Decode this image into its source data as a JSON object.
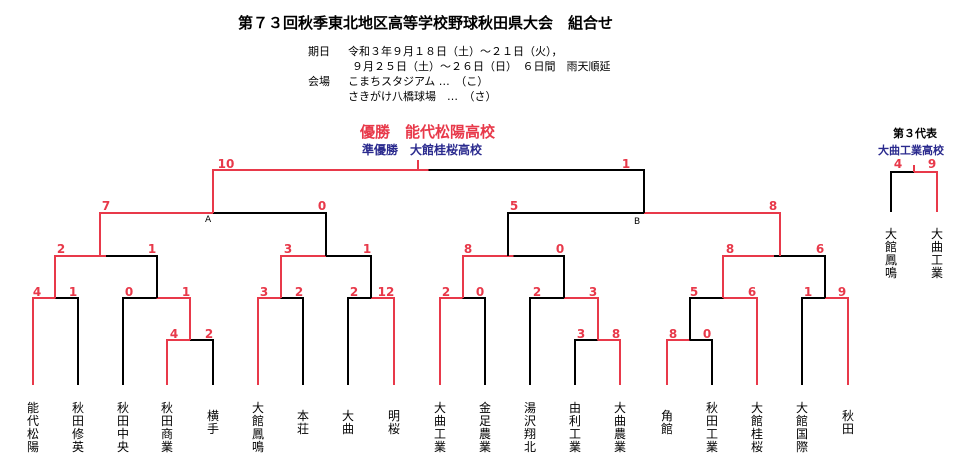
{
  "header": {
    "title": "第７３回秋季東北地区高等学校野球秋田県大会　組合せ",
    "period_label": "期日",
    "period_line1": "令和３年９月１８日（土）～２１日（火），",
    "period_line2": "９月２５日（土）～２６日（日）　６日間　雨天順延",
    "venue_label": "会場",
    "venue_line1": "こまちスタジアム …　（こ）",
    "venue_line2": "さきがけ八橋球場　…　（さ）"
  },
  "result": {
    "champion": "優勝　能代松陽高校",
    "runner_up": "準優勝　大館桂桜高校"
  },
  "third_rep": {
    "title": "第３代表",
    "team": "大曲工業高校",
    "scores": [
      "4",
      "9"
    ],
    "teams": [
      "大館鳳鳴",
      "大曲工業"
    ]
  },
  "marks": [
    "A",
    "B"
  ],
  "colors": {
    "win": "#e8394a",
    "lose": "#000000",
    "runner_up_text": "#2a2a8e"
  },
  "teams": [
    "能代松陽",
    "秋田修英",
    "秋田中央",
    "秋田商業",
    "横手",
    "大館鳳鳴",
    "本荘",
    "大曲",
    "明桜",
    "大曲工業",
    "金足農業",
    "湯沢翔北",
    "由利工業",
    "大曲農業",
    "角館",
    "秋田工業",
    "大館桂桜",
    "大館国際",
    "秋田"
  ],
  "scores": {
    "final": [
      "10",
      "1"
    ],
    "semi": [
      "7",
      "0",
      "5",
      "8"
    ],
    "quarter": [
      "2",
      "1",
      "3",
      "1",
      "8",
      "0",
      "8",
      "6"
    ],
    "r2": [
      "4",
      "1",
      "0",
      "1",
      "3",
      "2",
      "2",
      "12",
      "2",
      "0",
      "2",
      "3",
      "5",
      "6",
      "1",
      "9"
    ],
    "r1": [
      "4",
      "2",
      "3",
      "8",
      "8",
      "0"
    ]
  }
}
